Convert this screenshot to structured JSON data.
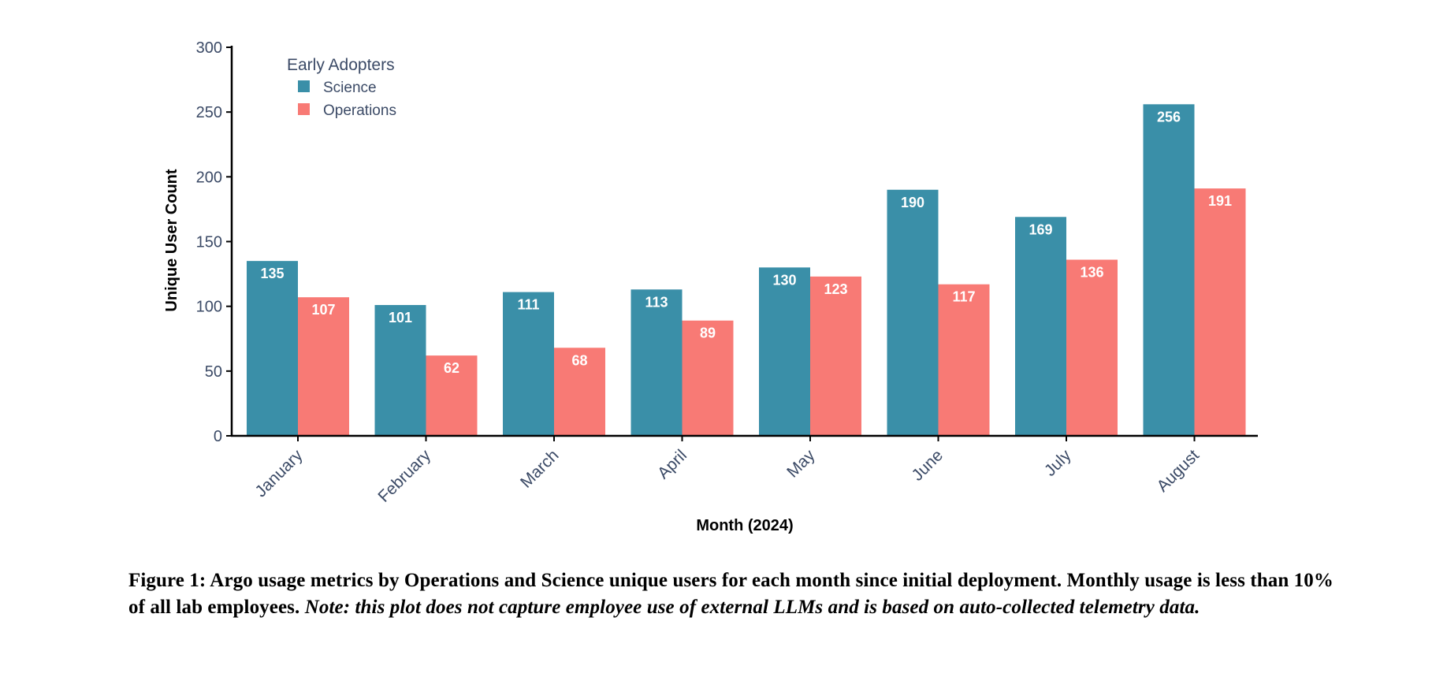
{
  "colors": {
    "science": "#3A8FA8",
    "operations": "#F87A75",
    "axis": "#000000",
    "tick_text": "#3b4a66"
  },
  "chart_data": {
    "type": "bar",
    "categories": [
      "January",
      "February",
      "March",
      "April",
      "May",
      "June",
      "July",
      "August"
    ],
    "series": [
      {
        "name": "Science",
        "values": [
          135,
          101,
          111,
          113,
          130,
          190,
          169,
          256
        ]
      },
      {
        "name": "Operations",
        "values": [
          107,
          62,
          68,
          89,
          123,
          117,
          136,
          191
        ]
      }
    ],
    "title": "",
    "xlabel": "Month (2024)",
    "ylabel": "Unique User Count",
    "ylim": [
      0,
      300
    ],
    "yticks": [
      0,
      50,
      100,
      150,
      200,
      250,
      300
    ],
    "legend_title": "Early Adopters",
    "legend_position": "top-left",
    "grid": false,
    "data_labels": true
  },
  "caption": {
    "main": "Figure 1: Argo usage metrics by Operations and Science unique users for each month since initial deployment. Monthly usage is less than 10% of all lab employees. ",
    "note": "Note: this plot does not capture employee use of external LLMs and is based on auto-collected telemetry data."
  }
}
